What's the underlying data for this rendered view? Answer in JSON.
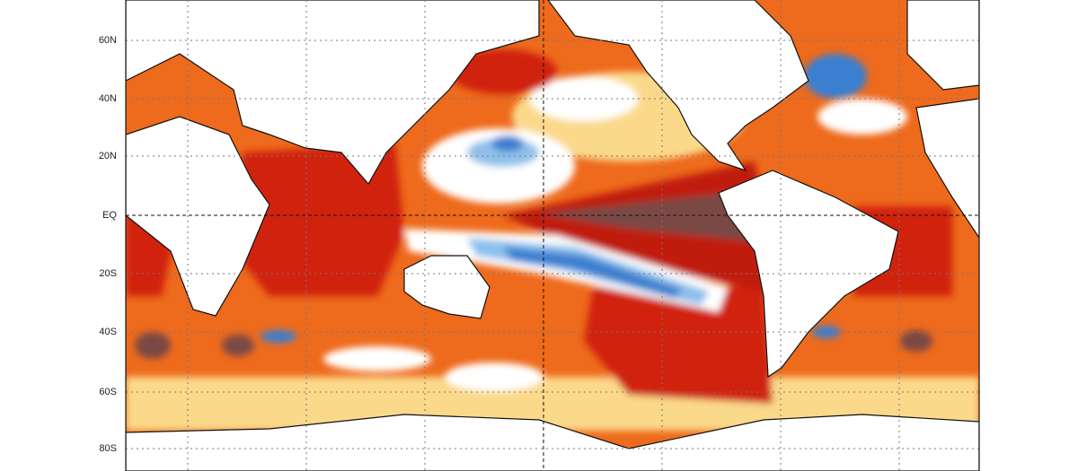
{
  "map": {
    "lat_labels": [
      "60N",
      "40N",
      "20N",
      "EQ",
      "20S",
      "40S",
      "60S",
      "80S"
    ]
  }
}
